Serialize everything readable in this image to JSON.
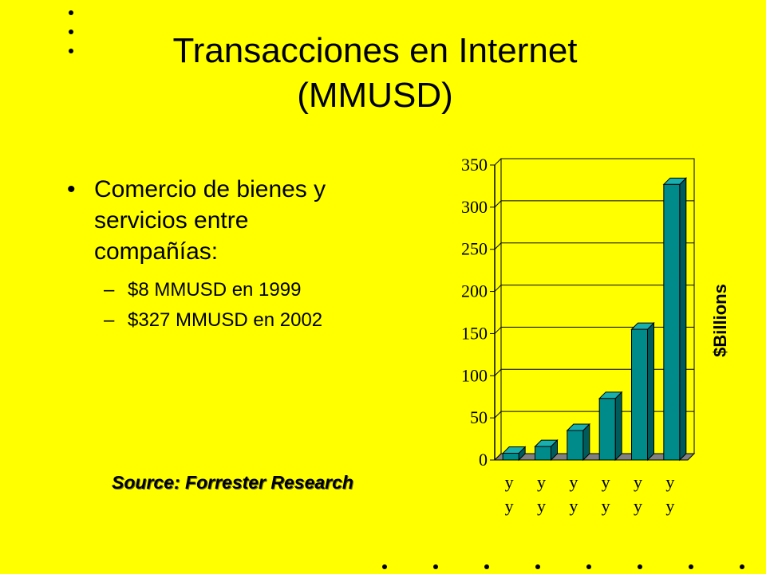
{
  "slide": {
    "title_line1": "Transacciones en Internet",
    "title_line2": "(MMUSD)",
    "bullet_main": "Comercio de bienes y servicios entre compañías:",
    "sub_bullets": [
      "$8 MMUSD en 1999",
      "$327 MMUSD en 2002"
    ],
    "source": "Source: Forrester Research",
    "bullet_glyph": "•",
    "dash_glyph": "–"
  },
  "chart_data": {
    "type": "bar",
    "categories": [
      "y\ny",
      "y\ny",
      "y\ny",
      "y\ny",
      "y\ny",
      "y\ny"
    ],
    "values": [
      8,
      16,
      35,
      73,
      155,
      327
    ],
    "ylabel": "$Billions",
    "ylim": [
      0,
      350
    ],
    "yticks": [
      0,
      50,
      100,
      150,
      200,
      250,
      300,
      350
    ],
    "grid": true,
    "legend": "none",
    "colors": {
      "bar_front": "#008B8B",
      "bar_side": "#005C5C",
      "bar_top": "#19AFAF",
      "floor": "#808080"
    }
  }
}
